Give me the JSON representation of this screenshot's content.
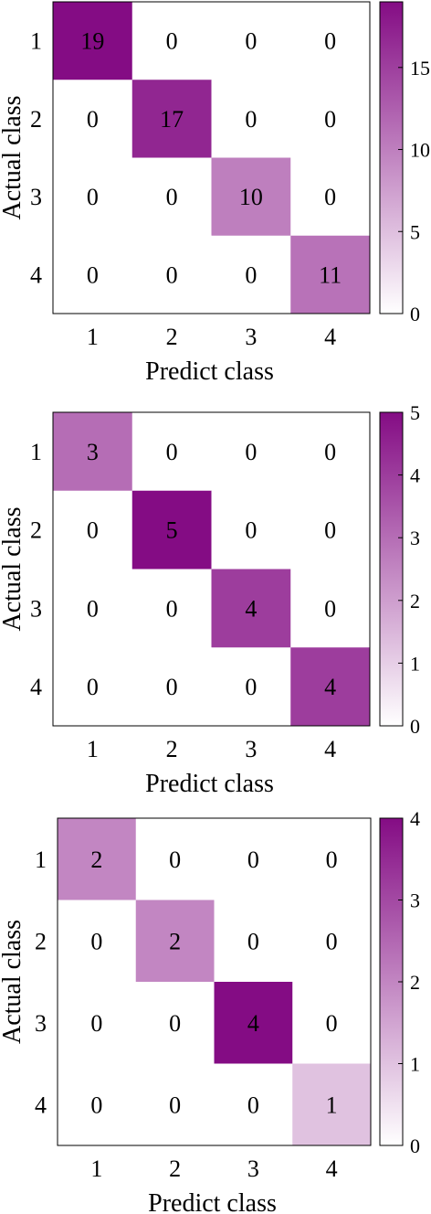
{
  "colors": {
    "low": "#ffffff",
    "high": "#840c84",
    "frame": "#000000"
  },
  "chart_data": [
    {
      "type": "heatmap",
      "title": "",
      "xlabel": "Predict class",
      "ylabel": "Actual class",
      "x_categories": [
        "1",
        "2",
        "3",
        "4"
      ],
      "y_categories": [
        "1",
        "2",
        "3",
        "4"
      ],
      "values": [
        [
          19,
          0,
          0,
          0
        ],
        [
          0,
          17,
          0,
          0
        ],
        [
          0,
          0,
          10,
          0
        ],
        [
          0,
          0,
          0,
          11
        ]
      ],
      "colorbar": {
        "range": [
          0,
          19
        ],
        "ticks": [
          0,
          5,
          10,
          15
        ]
      }
    },
    {
      "type": "heatmap",
      "title": "",
      "xlabel": "Predict class",
      "ylabel": "Actual class",
      "x_categories": [
        "1",
        "2",
        "3",
        "4"
      ],
      "y_categories": [
        "1",
        "2",
        "3",
        "4"
      ],
      "values": [
        [
          3,
          0,
          0,
          0
        ],
        [
          0,
          5,
          0,
          0
        ],
        [
          0,
          0,
          4,
          0
        ],
        [
          0,
          0,
          0,
          4
        ]
      ],
      "colorbar": {
        "range": [
          0,
          5
        ],
        "ticks": [
          0,
          1,
          2,
          3,
          4,
          5
        ]
      }
    },
    {
      "type": "heatmap",
      "title": "",
      "xlabel": "Predict class",
      "ylabel": "Actual class",
      "x_categories": [
        "1",
        "2",
        "3",
        "4"
      ],
      "y_categories": [
        "1",
        "2",
        "3",
        "4"
      ],
      "values": [
        [
          2,
          0,
          0,
          0
        ],
        [
          0,
          2,
          0,
          0
        ],
        [
          0,
          0,
          4,
          0
        ],
        [
          0,
          0,
          0,
          1
        ]
      ],
      "colorbar": {
        "range": [
          0,
          4
        ],
        "ticks": [
          0,
          1,
          2,
          3,
          4
        ]
      }
    }
  ]
}
